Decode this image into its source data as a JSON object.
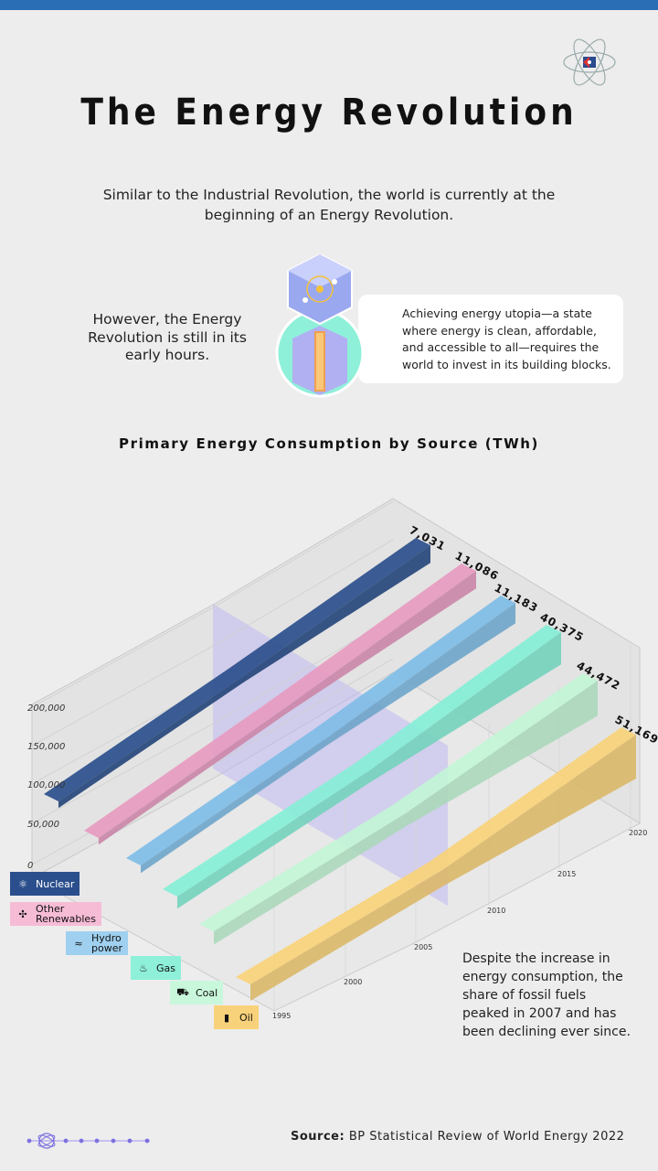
{
  "header": {
    "title": "The Energy Revolution",
    "intro": "Similar to the Industrial Revolution, the world is currently at the beginning of an Energy Revolution.",
    "left_note": "However, the Energy Revolution is still in its early hours.",
    "card_text": "Achieving energy utopia—a state where energy is clean, affordable, and accessible to all—requires the world to invest in its building blocks."
  },
  "chart_data": {
    "type": "area",
    "title": "Primary Energy Consumption by Source (TWh)",
    "y_ticks": [
      "0",
      "50,000",
      "100,000",
      "150,000",
      "200,000"
    ],
    "x_ticks": [
      "1995",
      "2000",
      "2005",
      "2010",
      "2015",
      "2020"
    ],
    "series": [
      {
        "name": "Nuclear",
        "end_label": "7,031",
        "color": "#2b4f8c"
      },
      {
        "name": "Other Renewables",
        "end_label": "11,086",
        "color": "#e79bc0"
      },
      {
        "name": "Hydro power",
        "end_label": "11,183",
        "color": "#7fbde6"
      },
      {
        "name": "Gas",
        "end_label": "40,375",
        "color": "#86efd7"
      },
      {
        "name": "Coal",
        "end_label": "44,472",
        "color": "#c2f5d6"
      },
      {
        "name": "Oil",
        "end_label": "51,169",
        "color": "#f8d27a"
      }
    ]
  },
  "legend": [
    {
      "label": "Nuclear",
      "icon": "atom-icon",
      "bg": "#2b4f8c",
      "fg": "#ffffff"
    },
    {
      "label": "Other Renewables",
      "icon": "wind-turbine-icon",
      "bg": "#f6bcd6",
      "fg": "#111111"
    },
    {
      "label": "Hydro power",
      "icon": "water-wave-icon",
      "bg": "#9fd0ef",
      "fg": "#111111"
    },
    {
      "label": "Gas",
      "icon": "gas-flame-icon",
      "bg": "#8ff0d9",
      "fg": "#111111"
    },
    {
      "label": "Coal",
      "icon": "coal-cart-icon",
      "bg": "#c9f7dc",
      "fg": "#111111"
    },
    {
      "label": "Oil",
      "icon": "oil-barrel-icon",
      "bg": "#f8d27a",
      "fg": "#111111"
    }
  ],
  "closing_note": "Despite the increase in energy consumption, the share of fossil fuels peaked in 2007 and has been declining ever since.",
  "source": {
    "prefix": "Source:",
    "text": "BP Statistical Review of World Energy 2022"
  }
}
